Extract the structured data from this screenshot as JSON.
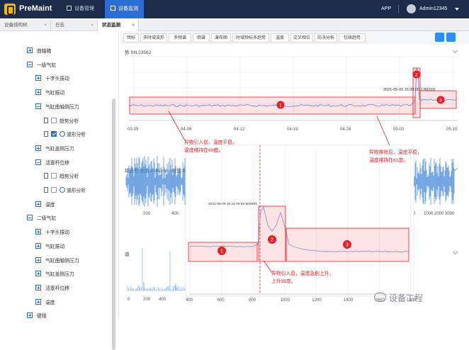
{
  "app": {
    "brand": "PreMaint"
  },
  "nav": [
    {
      "label": "设备管理"
    },
    {
      "label": "设备监测"
    }
  ],
  "header": {
    "app_label": "APP",
    "user": "Admin12345"
  },
  "tabs": [
    {
      "label": "设备结构树"
    },
    {
      "label": "日志"
    },
    {
      "label": "状态监测"
    }
  ],
  "tree": [
    {
      "label": "曲轴箱",
      "level": 0,
      "kind": "plus"
    },
    {
      "label": "一级气缸",
      "level": 0,
      "kind": "minus"
    },
    {
      "label": "十字头振动",
      "level": 1,
      "kind": "plus"
    },
    {
      "label": "气缸振动",
      "level": 1,
      "kind": "plus"
    },
    {
      "label": "气缸曲轴侧压力",
      "level": 1,
      "kind": "minus"
    },
    {
      "label": "趋势分析",
      "level": 2,
      "kind": "file"
    },
    {
      "label": "波形分析",
      "level": 2,
      "kind": "file-checked"
    },
    {
      "label": "气缸盖侧压力",
      "level": 1,
      "kind": "plus"
    },
    {
      "label": "活塞杆位移",
      "level": 1,
      "kind": "minus"
    },
    {
      "label": "趋势分析",
      "level": 2,
      "kind": "file"
    },
    {
      "label": "波形分析",
      "level": 2,
      "kind": "file"
    },
    {
      "label": "温度",
      "level": 1,
      "kind": "plus"
    },
    {
      "label": "二级气缸",
      "level": 0,
      "kind": "minus"
    },
    {
      "label": "十字头振动",
      "level": 1,
      "kind": "plus"
    },
    {
      "label": "气缸振动",
      "level": 1,
      "kind": "plus"
    },
    {
      "label": "气缸曲轴侧压力",
      "level": 1,
      "kind": "plus"
    },
    {
      "label": "气缸盖侧压力",
      "level": 1,
      "kind": "plus"
    },
    {
      "label": "活塞杆位移",
      "level": 1,
      "kind": "plus"
    },
    {
      "label": "温度",
      "level": 1,
      "kind": "plus"
    },
    {
      "label": "键相",
      "level": 0,
      "kind": "plus"
    }
  ],
  "toolbar": [
    "频标",
    "多时域波形",
    "多频谱",
    "倒谱",
    "瀑布图",
    "时域频标多趋势",
    "温度",
    "交叉相位",
    "防决分析",
    "包络趋势"
  ],
  "panels": {
    "trend_title": "势 SN:23562",
    "wave_title": "域波形 总值:2.862m/s² 转速:0RPM",
    "spec_title": "谱"
  },
  "colors": {
    "primary": "#2b6fd6",
    "highlight": "#e8202a",
    "trend_line": "#5a8ee6",
    "wave": "#3b82d6"
  },
  "annotations": {
    "before": [
      "异物引入前，温度平稳，",
      "温度维持在60度。"
    ],
    "after": [
      "异物排除后，温度平稳，",
      "温度维持在61度。"
    ],
    "jump": [
      "异物引入后，温度急剧上升，",
      "上升35度。"
    ],
    "trend_readout": "2021-05-09  15:30:00  2.862(0)",
    "zoom_readout": "2021-05-09  10:41:00  84.9(0000)"
  },
  "watermark": "设备工程",
  "chart_data": [
    {
      "type": "line",
      "x": [
        "03-29",
        "04-05",
        "04-12",
        "04-19",
        "04-26",
        "05-03",
        "05-10"
      ],
      "values": [
        60,
        60,
        60,
        60,
        60,
        60,
        61
      ],
      "ylim": [
        0,
        100
      ],
      "regions": [
        {
          "label": "1"
        },
        {
          "label": "2"
        },
        {
          "label": "3"
        }
      ]
    },
    {
      "type": "line",
      "x": [
        "400",
        "600",
        "800",
        "1000",
        "1200",
        "1400",
        "1600",
        "1800"
      ],
      "series_levels": [
        60,
        95,
        61
      ],
      "regions": [
        {
          "label": "1"
        },
        {
          "label": "2"
        },
        {
          "label": "3"
        }
      ]
    },
    {
      "type": "line",
      "x": [
        "0",
        "1000",
        "2000",
        "3000"
      ],
      "x_left": [
        "200",
        "400"
      ]
    },
    {
      "type": "bar",
      "x": [
        "0",
        "200",
        "400"
      ]
    }
  ]
}
